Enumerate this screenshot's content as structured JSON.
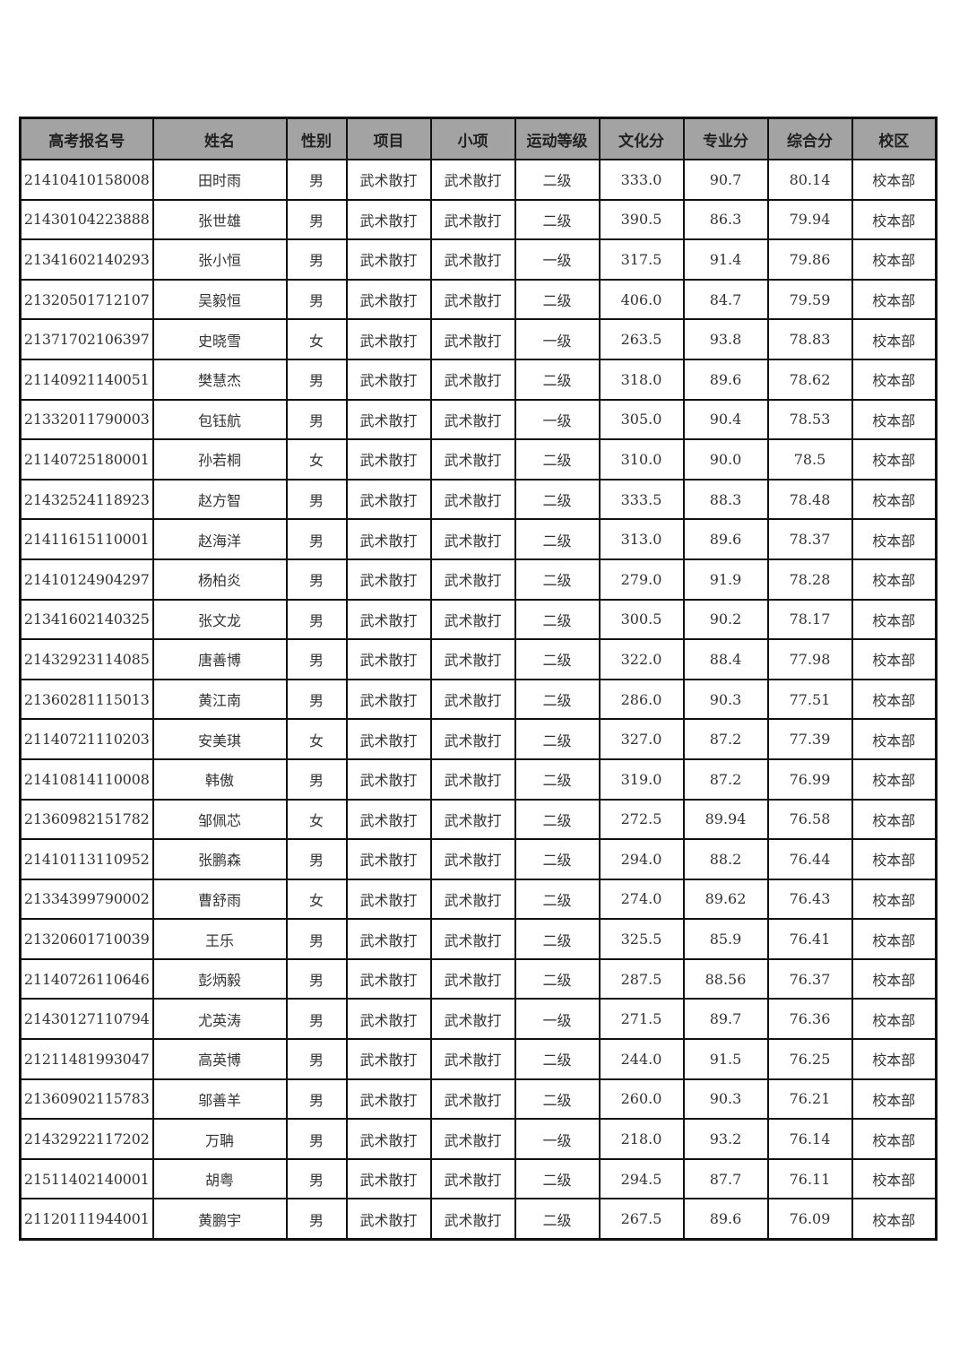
{
  "table": {
    "headers": [
      "高考报名号",
      "姓名",
      "性别",
      "项目",
      "小项",
      "运动等级",
      "文化分",
      "专业分",
      "综合分",
      "校区"
    ],
    "rows": [
      [
        "21410410158008",
        "田时雨",
        "男",
        "武术散打",
        "武术散打",
        "二级",
        "333.0",
        "90.7",
        "80.14",
        "校本部"
      ],
      [
        "21430104223888",
        "张世雄",
        "男",
        "武术散打",
        "武术散打",
        "二级",
        "390.5",
        "86.3",
        "79.94",
        "校本部"
      ],
      [
        "21341602140293",
        "张小恒",
        "男",
        "武术散打",
        "武术散打",
        "一级",
        "317.5",
        "91.4",
        "79.86",
        "校本部"
      ],
      [
        "21320501712107",
        "吴毅恒",
        "男",
        "武术散打",
        "武术散打",
        "二级",
        "406.0",
        "84.7",
        "79.59",
        "校本部"
      ],
      [
        "21371702106397",
        "史晓雪",
        "女",
        "武术散打",
        "武术散打",
        "一级",
        "263.5",
        "93.8",
        "78.83",
        "校本部"
      ],
      [
        "21140921140051",
        "樊慧杰",
        "男",
        "武术散打",
        "武术散打",
        "二级",
        "318.0",
        "89.6",
        "78.62",
        "校本部"
      ],
      [
        "21332011790003",
        "包钰航",
        "男",
        "武术散打",
        "武术散打",
        "一级",
        "305.0",
        "90.4",
        "78.53",
        "校本部"
      ],
      [
        "21140725180001",
        "孙若桐",
        "女",
        "武术散打",
        "武术散打",
        "二级",
        "310.0",
        "90.0",
        "78.5",
        "校本部"
      ],
      [
        "21432524118923",
        "赵方智",
        "男",
        "武术散打",
        "武术散打",
        "二级",
        "333.5",
        "88.3",
        "78.48",
        "校本部"
      ],
      [
        "21411615110001",
        "赵海洋",
        "男",
        "武术散打",
        "武术散打",
        "二级",
        "313.0",
        "89.6",
        "78.37",
        "校本部"
      ],
      [
        "21410124904297",
        "杨柏炎",
        "男",
        "武术散打",
        "武术散打",
        "二级",
        "279.0",
        "91.9",
        "78.28",
        "校本部"
      ],
      [
        "21341602140325",
        "张文龙",
        "男",
        "武术散打",
        "武术散打",
        "二级",
        "300.5",
        "90.2",
        "78.17",
        "校本部"
      ],
      [
        "21432923114085",
        "唐善博",
        "男",
        "武术散打",
        "武术散打",
        "二级",
        "322.0",
        "88.4",
        "77.98",
        "校本部"
      ],
      [
        "21360281115013",
        "黄江南",
        "男",
        "武术散打",
        "武术散打",
        "二级",
        "286.0",
        "90.3",
        "77.51",
        "校本部"
      ],
      [
        "21140721110203",
        "安美琪",
        "女",
        "武术散打",
        "武术散打",
        "二级",
        "327.0",
        "87.2",
        "77.39",
        "校本部"
      ],
      [
        "21410814110008",
        "韩傲",
        "男",
        "武术散打",
        "武术散打",
        "二级",
        "319.0",
        "87.2",
        "76.99",
        "校本部"
      ],
      [
        "21360982151782",
        "邹佩芯",
        "女",
        "武术散打",
        "武术散打",
        "二级",
        "272.5",
        "89.94",
        "76.58",
        "校本部"
      ],
      [
        "21410113110952",
        "张鹏森",
        "男",
        "武术散打",
        "武术散打",
        "二级",
        "294.0",
        "88.2",
        "76.44",
        "校本部"
      ],
      [
        "21334399790002",
        "曹舒雨",
        "女",
        "武术散打",
        "武术散打",
        "二级",
        "274.0",
        "89.62",
        "76.43",
        "校本部"
      ],
      [
        "21320601710039",
        "王乐",
        "男",
        "武术散打",
        "武术散打",
        "二级",
        "325.5",
        "85.9",
        "76.41",
        "校本部"
      ],
      [
        "21140726110646",
        "彭炳毅",
        "男",
        "武术散打",
        "武术散打",
        "二级",
        "287.5",
        "88.56",
        "76.37",
        "校本部"
      ],
      [
        "21430127110794",
        "尤英涛",
        "男",
        "武术散打",
        "武术散打",
        "一级",
        "271.5",
        "89.7",
        "76.36",
        "校本部"
      ],
      [
        "21211481993047",
        "高英博",
        "男",
        "武术散打",
        "武术散打",
        "二级",
        "244.0",
        "91.5",
        "76.25",
        "校本部"
      ],
      [
        "21360902115783",
        "邬善羊",
        "男",
        "武术散打",
        "武术散打",
        "二级",
        "260.0",
        "90.3",
        "76.21",
        "校本部"
      ],
      [
        "21432922117202",
        "万聃",
        "男",
        "武术散打",
        "武术散打",
        "一级",
        "218.0",
        "93.2",
        "76.14",
        "校本部"
      ],
      [
        "21511402140001",
        "胡粤",
        "男",
        "武术散打",
        "武术散打",
        "二级",
        "294.5",
        "87.7",
        "76.11",
        "校本部"
      ],
      [
        "21120111944001",
        "黄鹏宇",
        "男",
        "武术散打",
        "武术散打",
        "二级",
        "267.5",
        "89.6",
        "76.09",
        "校本部"
      ]
    ]
  },
  "colors": {
    "header_bg": "#a3a3a3",
    "border": "#111111"
  }
}
